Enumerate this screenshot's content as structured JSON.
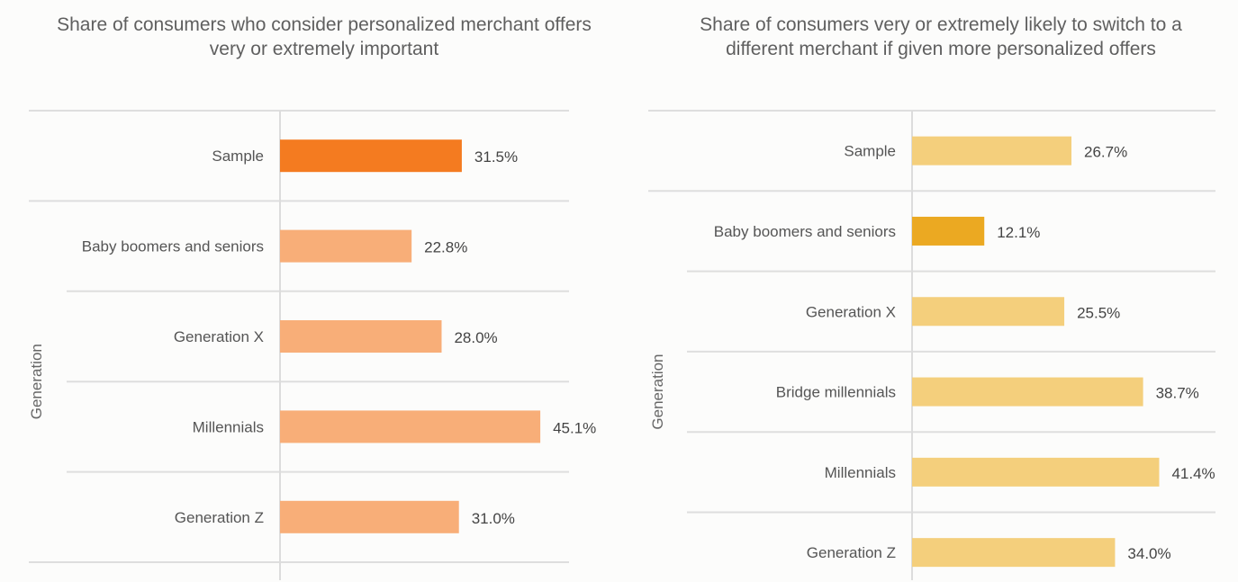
{
  "chart_data": [
    {
      "type": "bar",
      "orientation": "horizontal",
      "title": "Share of consumers who consider personalized merchant offers very or extremely important",
      "ylabel": "Generation",
      "xlabel": "",
      "categories": [
        "Sample",
        "Baby boomers and seniors",
        "Generation X",
        "Millennials",
        "Generation Z"
      ],
      "values": [
        31.5,
        22.8,
        28.0,
        45.1,
        31.0
      ],
      "value_labels": [
        "31.5%",
        "22.8%",
        "28.0%",
        "45.1%",
        "31.0%"
      ],
      "highlight_index": 0,
      "colors": {
        "highlight": "#f47b20",
        "default": "#f8ae78"
      },
      "grid": false,
      "legend": "none"
    },
    {
      "type": "bar",
      "orientation": "horizontal",
      "title": "Share of consumers very or extremely likely to switch to a different merchant if given more personalized offers",
      "ylabel": "Generation",
      "xlabel": "",
      "categories": [
        "Sample",
        "Baby boomers and seniors",
        "Generation X",
        "Bridge millennials",
        "Millennials",
        "Generation Z"
      ],
      "values": [
        26.7,
        12.1,
        25.5,
        38.7,
        41.4,
        34.0
      ],
      "value_labels": [
        "26.7%",
        "12.1%",
        "25.5%",
        "38.7%",
        "41.4%",
        "34.0%"
      ],
      "highlight_index": 1,
      "colors": {
        "highlight": "#eba922",
        "default": "#f4cf7c"
      },
      "grid": false,
      "legend": "none"
    }
  ]
}
